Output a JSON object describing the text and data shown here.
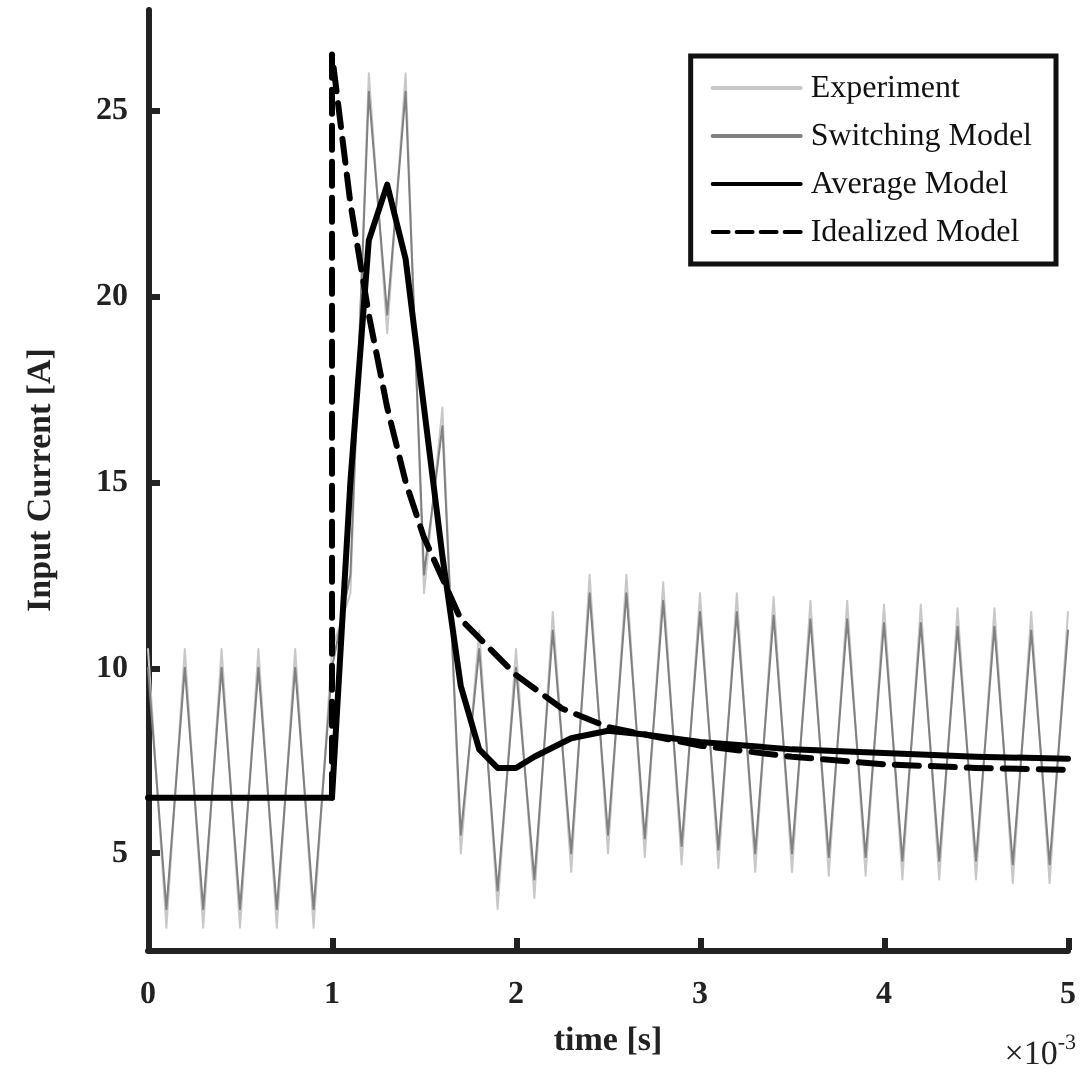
{
  "chart_data": {
    "type": "line",
    "xlabel": "time [s]",
    "ylabel": "Input Current [A]",
    "annotations": [
      "×10$^{-3}$"
    ],
    "xlim": [
      0,
      5
    ],
    "xticks": [
      0,
      1,
      2,
      3,
      4,
      5
    ],
    "ylim": [
      2.4,
      27.7
    ],
    "yticks": [
      5,
      10,
      15,
      20,
      25
    ],
    "grid": false,
    "legend": "top right",
    "marker": "none",
    "series": [
      {
        "name": "Experiment",
        "color": "#c8c8c8",
        "line_style": "solid",
        "x": [
          0,
          0.1,
          0.2,
          0.3,
          0.4,
          0.5,
          0.6,
          0.7,
          0.8,
          0.9,
          1,
          1.1,
          1.2,
          1.3,
          1.4,
          1.5,
          1.6,
          1.7,
          1.8,
          1.9,
          2,
          2.1,
          2.2,
          2.3,
          2.4,
          2.5,
          2.6,
          2.7,
          2.8,
          2.9,
          3,
          3.1,
          3.2,
          3.3,
          3.4,
          3.5,
          3.6,
          3.7,
          3.8,
          3.9,
          4,
          4.1,
          4.2,
          4.3,
          4.4,
          4.5,
          4.6,
          4.7,
          4.8,
          4.9,
          5
        ],
        "values": [
          10.5,
          3,
          10.5,
          3,
          10.5,
          3,
          10.5,
          3,
          10.5,
          3,
          10.5,
          12,
          26,
          19,
          26,
          12,
          17,
          5,
          11,
          3.5,
          10.5,
          3.8,
          11.5,
          4.5,
          12.5,
          5,
          12.5,
          4.9,
          12.3,
          4.7,
          12,
          4.6,
          12,
          4.5,
          11.9,
          4.5,
          11.8,
          4.4,
          11.8,
          4.4,
          11.7,
          4.3,
          11.7,
          4.3,
          11.6,
          4.3,
          11.6,
          4.2,
          11.5,
          4.2,
          11.5
        ]
      },
      {
        "name": "Switching Model",
        "color": "#808080",
        "line_style": "solid",
        "x": [
          0,
          0.1,
          0.2,
          0.3,
          0.4,
          0.5,
          0.6,
          0.7,
          0.8,
          0.9,
          1,
          1.1,
          1.2,
          1.3,
          1.4,
          1.5,
          1.6,
          1.7,
          1.8,
          1.9,
          2,
          2.1,
          2.2,
          2.3,
          2.4,
          2.5,
          2.6,
          2.7,
          2.8,
          2.9,
          3,
          3.1,
          3.2,
          3.3,
          3.4,
          3.5,
          3.6,
          3.7,
          3.8,
          3.9,
          4,
          4.1,
          4.2,
          4.3,
          4.4,
          4.5,
          4.6,
          4.7,
          4.8,
          4.9,
          5
        ],
        "values": [
          10,
          3.5,
          10,
          3.5,
          10,
          3.5,
          10,
          3.5,
          10,
          3.5,
          10,
          12.5,
          25.5,
          19.5,
          25.5,
          12.5,
          16.5,
          5.5,
          10.5,
          4,
          10,
          4.3,
          11,
          5,
          12,
          5.5,
          12,
          5.4,
          11.8,
          5.2,
          11.5,
          5.1,
          11.5,
          5,
          11.4,
          5,
          11.3,
          4.9,
          11.3,
          4.9,
          11.2,
          4.8,
          11.2,
          4.8,
          11.1,
          4.8,
          11.1,
          4.7,
          11,
          4.7,
          11
        ]
      },
      {
        "name": "Average Model",
        "color": "#000000",
        "line_style": "solid",
        "x": [
          0,
          1,
          1.1,
          1.2,
          1.3,
          1.4,
          1.5,
          1.6,
          1.7,
          1.8,
          1.9,
          2,
          2.1,
          2.3,
          2.5,
          2.7,
          3,
          3.5,
          4,
          4.5,
          5
        ],
        "values": [
          6.5,
          6.5,
          15,
          21.5,
          23,
          21,
          17,
          13,
          9.5,
          7.8,
          7.3,
          7.3,
          7.6,
          8.1,
          8.3,
          8.2,
          8,
          7.8,
          7.7,
          7.6,
          7.55
        ]
      },
      {
        "name": "Idealized Model",
        "color": "#000000",
        "line_style": "dashed",
        "x": [
          1,
          1,
          1.1,
          1.2,
          1.3,
          1.4,
          1.5,
          1.7,
          2,
          2.25,
          2.5,
          3,
          3.5,
          4,
          4.5,
          5
        ],
        "values": [
          6.5,
          26.5,
          22.5,
          19.5,
          17,
          15,
          13.5,
          11.3,
          9.8,
          8.9,
          8.4,
          7.9,
          7.6,
          7.4,
          7.3,
          7.25
        ]
      }
    ]
  }
}
